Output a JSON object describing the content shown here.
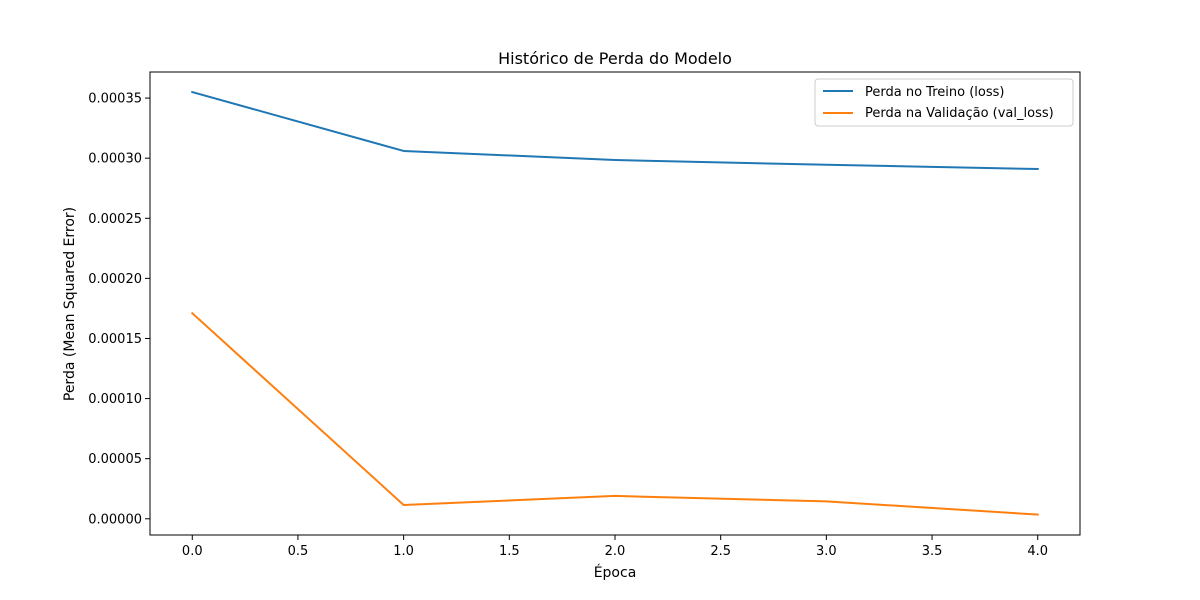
{
  "chart_data": {
    "type": "line",
    "title": "Histórico de Perda do Modelo",
    "xlabel": "Época",
    "ylabel": "Perda (Mean Squared Error)",
    "x": [
      0,
      1,
      2,
      3,
      4
    ],
    "xlim": [
      -0.2,
      4.2
    ],
    "ylim": [
      -1.35e-05,
      0.0003717
    ],
    "xticks": [
      "0.0",
      "0.5",
      "1.0",
      "1.5",
      "2.0",
      "2.5",
      "3.0",
      "3.5",
      "4.0"
    ],
    "xtick_values": [
      0,
      0.5,
      1,
      1.5,
      2,
      2.5,
      3,
      3.5,
      4
    ],
    "yticks": [
      "0.00000",
      "0.00005",
      "0.00010",
      "0.00015",
      "0.00020",
      "0.00025",
      "0.00030",
      "0.00035"
    ],
    "ytick_values": [
      0,
      5e-05,
      0.0001,
      0.00015,
      0.0002,
      0.00025,
      0.0003,
      0.00035
    ],
    "grid": false,
    "legend_position": "upper right",
    "series": [
      {
        "name": "Perda no Treino (loss)",
        "color": "#1f77b4",
        "values": [
          0.000355,
          0.000306,
          0.0002985,
          0.0002945,
          0.000291
        ]
      },
      {
        "name": "Perda na Validação (val_loss)",
        "color": "#ff7f0e",
        "values": [
          0.000171,
          1.15e-05,
          1.9e-05,
          1.45e-05,
          3.5e-06
        ]
      }
    ]
  }
}
